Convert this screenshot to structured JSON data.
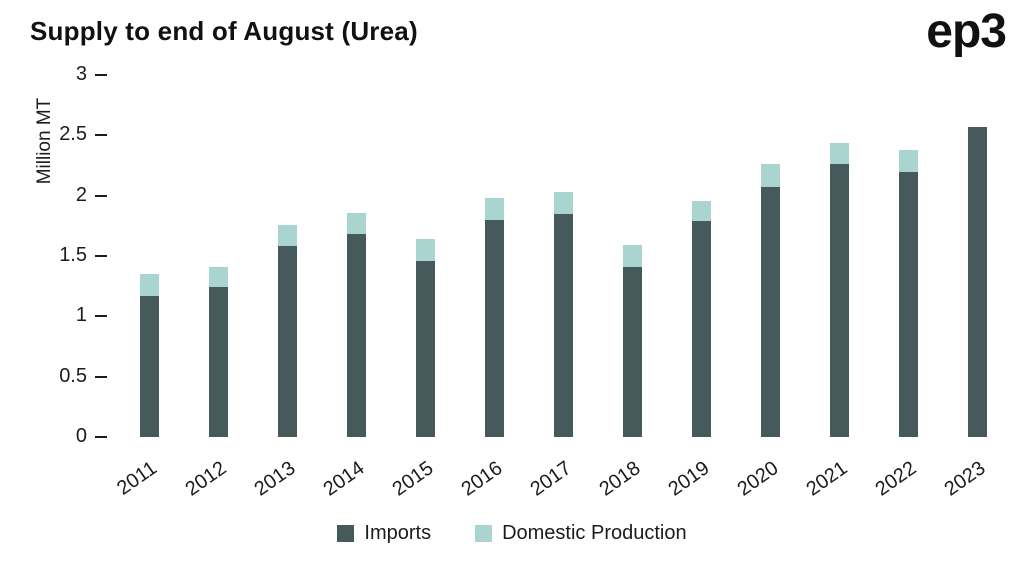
{
  "header": {
    "title": "Supply to end of August (Urea)",
    "logo": "ep3"
  },
  "chart_data": {
    "type": "bar",
    "stacked": true,
    "title": "Supply to end of August (Urea)",
    "xlabel": "",
    "ylabel": "Million MT",
    "ylim": [
      0,
      3
    ],
    "yticks": [
      0,
      0.5,
      1,
      1.5,
      2,
      2.5,
      3
    ],
    "grid": false,
    "legend_position": "bottom",
    "categories": [
      "2011",
      "2012",
      "2013",
      "2014",
      "2015",
      "2016",
      "2017",
      "2018",
      "2019",
      "2020",
      "2021",
      "2022",
      "2023"
    ],
    "series": [
      {
        "name": "Imports",
        "color": "#46595B",
        "values": [
          1.17,
          1.24,
          1.58,
          1.68,
          1.46,
          1.8,
          1.85,
          1.41,
          1.79,
          2.07,
          2.26,
          2.2,
          2.57
        ]
      },
      {
        "name": "Domestic Production",
        "color": "#A9D4D0",
        "values": [
          0.18,
          0.17,
          0.18,
          0.18,
          0.18,
          0.18,
          0.18,
          0.18,
          0.17,
          0.19,
          0.18,
          0.18,
          0.0
        ]
      }
    ]
  }
}
